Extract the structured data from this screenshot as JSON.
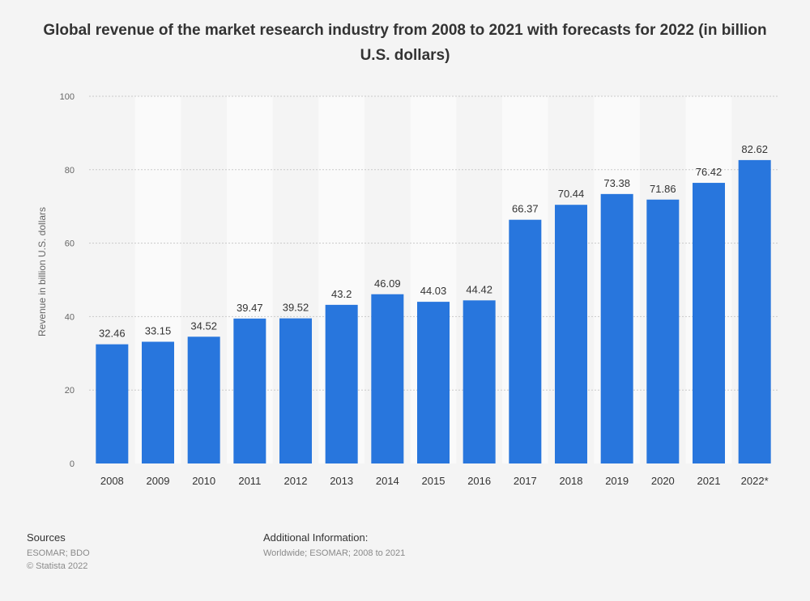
{
  "chart_data": {
    "type": "bar",
    "title": "Global revenue of the market research industry from 2008 to 2021 with forecasts for 2022 (in billion U.S. dollars)",
    "categories": [
      "2008",
      "2009",
      "2010",
      "2011",
      "2012",
      "2013",
      "2014",
      "2015",
      "2016",
      "2017",
      "2018",
      "2019",
      "2020",
      "2021",
      "2022*"
    ],
    "values": [
      32.46,
      33.15,
      34.52,
      39.47,
      39.52,
      43.2,
      46.09,
      44.03,
      44.42,
      66.37,
      70.44,
      73.38,
      71.86,
      76.42,
      82.62
    ],
    "value_labels": [
      "32.46",
      "33.15",
      "34.52",
      "39.47",
      "39.52",
      "43.2",
      "46.09",
      "44.03",
      "44.42",
      "66.37",
      "70.44",
      "73.38",
      "71.86",
      "76.42",
      "82.62"
    ],
    "xlabel": "",
    "ylabel": "Revenue in billion U.S. dollars",
    "ylim": [
      0,
      100
    ],
    "yticks": [
      0,
      20,
      40,
      60,
      80,
      100
    ],
    "grid": true,
    "bar_color": "#2876dd"
  },
  "footer": {
    "sources_title": "Sources",
    "sources_lines": [
      "ESOMAR; BDO",
      "© Statista 2022"
    ],
    "additional_title": "Additional Information:",
    "additional_lines": [
      "Worldwide; ESOMAR; 2008 to 2021"
    ]
  }
}
